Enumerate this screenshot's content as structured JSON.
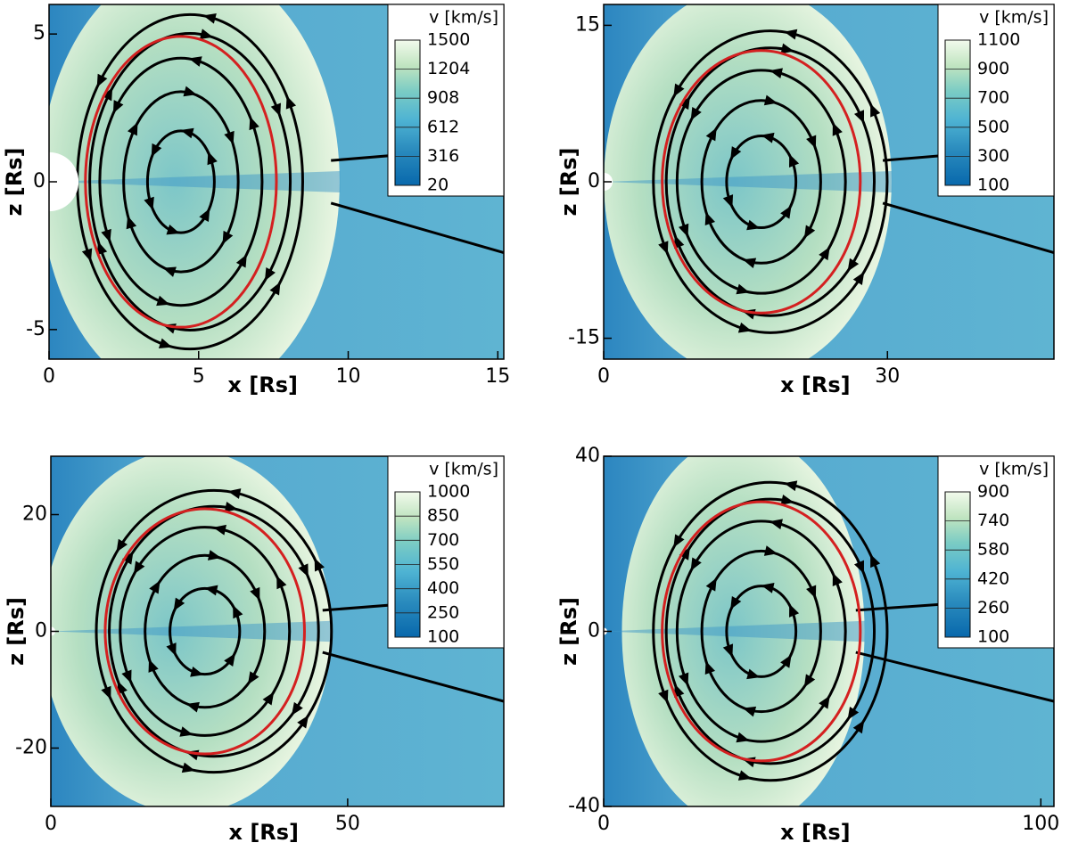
{
  "chart_data": [
    {
      "type": "heatmap",
      "xlabel": "x [Rs]",
      "ylabel": "z [Rs]",
      "xlim": [
        0,
        15.2
      ],
      "ylim": [
        -6,
        6
      ],
      "xticks": [
        0,
        5,
        10,
        15
      ],
      "yticks": [
        -5,
        0,
        5
      ],
      "colorbar": {
        "label": "v [km/s]",
        "lim": [
          20,
          1500
        ],
        "ticks": [
          20,
          316,
          612,
          908,
          1204,
          1500
        ]
      }
    },
    {
      "type": "heatmap",
      "xlabel": "x [Rs]",
      "ylabel": "z [Rs]",
      "xlim": [
        0,
        47.6
      ],
      "ylim": [
        -17,
        17
      ],
      "xticks": [
        0,
        30
      ],
      "yticks": [
        -15,
        0,
        15
      ],
      "colorbar": {
        "label": "v [km/s]",
        "lim": [
          100,
          1100
        ],
        "ticks": [
          100,
          300,
          500,
          700,
          900,
          1100
        ]
      }
    },
    {
      "type": "heatmap",
      "xlabel": "x [Rs]",
      "ylabel": "z [Rs]",
      "xlim": [
        0,
        76.3
      ],
      "ylim": [
        -30,
        30
      ],
      "xticks": [
        0,
        50
      ],
      "yticks": [
        -20,
        0,
        20
      ],
      "colorbar": {
        "label": "v [km/s]",
        "lim": [
          100,
          1000
        ],
        "ticks": [
          100,
          250,
          400,
          550,
          700,
          850,
          1000
        ]
      }
    },
    {
      "type": "heatmap",
      "xlabel": "x [Rs]",
      "ylabel": "z [Rs]",
      "xlim": [
        0,
        103
      ],
      "ylim": [
        -40,
        40
      ],
      "xticks": [
        0,
        100
      ],
      "yticks": [
        -40,
        0,
        40
      ],
      "colorbar": {
        "label": "v [km/s]",
        "lim": [
          100,
          900
        ],
        "ticks": [
          100,
          260,
          420,
          580,
          740,
          900
        ]
      }
    }
  ]
}
